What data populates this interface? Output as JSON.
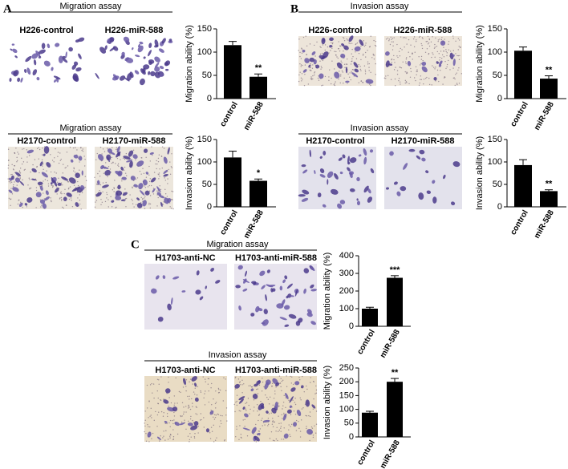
{
  "panel_labels": [
    "A",
    "B",
    "C"
  ],
  "chart_data": [
    {
      "type": "bar",
      "title": "Migration assay",
      "image_labels": [
        "H226-control",
        "H226-miR-588"
      ],
      "y_label": "Migration ability (%)",
      "categories": [
        "control",
        "miR-588"
      ],
      "values": [
        115,
        47
      ],
      "errors": [
        8,
        6
      ],
      "significance": "**",
      "color": "#000000",
      "ylim": [
        0,
        150
      ],
      "yticks": [
        0,
        50,
        100,
        150
      ]
    },
    {
      "type": "bar",
      "title": "Migration assay",
      "image_labels": [
        "H2170-control",
        "H2170-miR-588"
      ],
      "y_label": "Invasion ability (%)",
      "categories": [
        "control",
        "miR-588"
      ],
      "values": [
        110,
        58
      ],
      "errors": [
        14,
        4
      ],
      "significance": "*",
      "color": "#000000",
      "ylim": [
        0,
        150
      ],
      "yticks": [
        0,
        50,
        100,
        150
      ]
    },
    {
      "type": "bar",
      "title": "Invasion assay",
      "image_labels": [
        "H226-control",
        "H226-miR-588"
      ],
      "y_label": "Migration ability (%)",
      "categories": [
        "control",
        "miR-588"
      ],
      "values": [
        103,
        43
      ],
      "errors": [
        8,
        6
      ],
      "significance": "**",
      "color": "#000000",
      "ylim": [
        0,
        150
      ],
      "yticks": [
        0,
        50,
        100,
        150
      ]
    },
    {
      "type": "bar",
      "title": "Invasion assay",
      "image_labels": [
        "H2170-control",
        "H2170-miR-588"
      ],
      "y_label": "Invasion ability (%)",
      "categories": [
        "control",
        "miR-588"
      ],
      "values": [
        93,
        35
      ],
      "errors": [
        12,
        3
      ],
      "significance": "**",
      "color": "#000000",
      "ylim": [
        0,
        150
      ],
      "yticks": [
        0,
        50,
        100,
        150
      ]
    },
    {
      "type": "bar",
      "title": "Migration assay",
      "image_labels": [
        "H1703-anti-NC",
        "H1703-anti-miR-588"
      ],
      "y_label": "Migration ability (%)",
      "categories": [
        "control",
        "miR-588"
      ],
      "values": [
        100,
        275
      ],
      "errors": [
        8,
        12
      ],
      "significance": "***",
      "color": "#000000",
      "ylim": [
        0,
        400
      ],
      "yticks": [
        0,
        100,
        200,
        300,
        400
      ]
    },
    {
      "type": "bar",
      "title": "Invasion assay",
      "image_labels": [
        "H1703-anti-NC",
        "H1703-anti-miR-588"
      ],
      "y_label": "Invasion ability (%)",
      "categories": [
        "control",
        "miR-588"
      ],
      "values": [
        88,
        200
      ],
      "errors": [
        5,
        12
      ],
      "significance": "**",
      "color": "#000000",
      "ylim": [
        0,
        250
      ],
      "yticks": [
        0,
        50,
        100,
        150,
        200,
        250
      ]
    }
  ]
}
